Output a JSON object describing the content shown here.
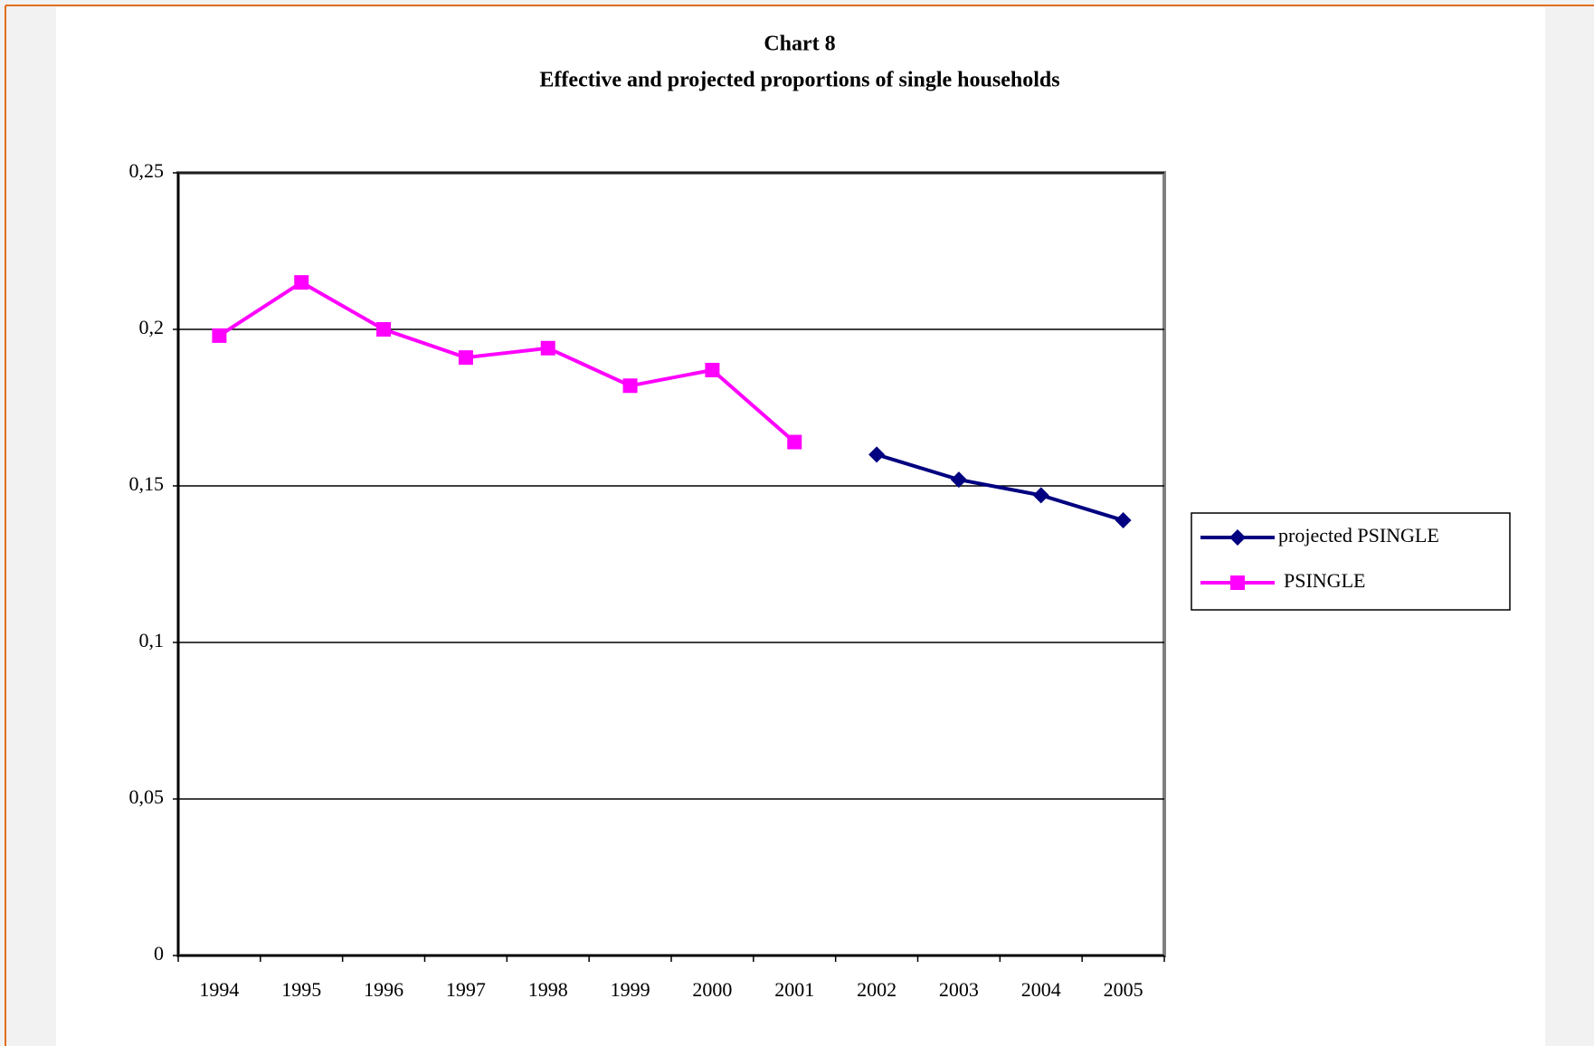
{
  "chart_data": {
    "type": "line",
    "title": "Chart 8",
    "subtitle": "Effective and projected proportions of single households",
    "categories": [
      "1994",
      "1995",
      "1996",
      "1997",
      "1998",
      "1999",
      "2000",
      "2001",
      "2002",
      "2003",
      "2004",
      "2005"
    ],
    "series": [
      {
        "name": "projected PSINGLE",
        "color": "#000080",
        "marker": "diamond",
        "values": [
          null,
          null,
          null,
          null,
          null,
          null,
          null,
          null,
          0.16,
          0.152,
          0.147,
          0.139
        ]
      },
      {
        "name": "PSINGLE",
        "color": "#ff00ff",
        "marker": "square",
        "values": [
          0.198,
          0.215,
          0.2,
          0.191,
          0.194,
          0.182,
          0.187,
          0.164,
          null,
          null,
          null,
          null
        ]
      }
    ],
    "ylim": [
      0,
      0.25
    ],
    "yticks": [
      0,
      {
        "value": 0.05,
        "label": "0,05"
      },
      {
        "value": 0.1,
        "label": "0,1"
      },
      {
        "value": 0.15,
        "label": "0,15"
      },
      {
        "value": 0.2,
        "label": "0,2"
      },
      {
        "value": 0.25,
        "label": "0,25"
      }
    ],
    "grid": true,
    "legend": "right"
  }
}
